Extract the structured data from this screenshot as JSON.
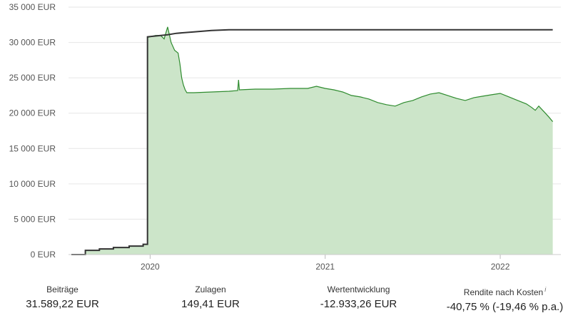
{
  "chart_data": {
    "type": "area",
    "ylim": [
      0,
      35000
    ],
    "y_ticks": [
      "0 EUR",
      "5 000 EUR",
      "10 000 EUR",
      "15 000 EUR",
      "20 000 EUR",
      "25 000 EUR",
      "30 000 EUR",
      "35 000 EUR"
    ],
    "y_tick_values": [
      0,
      5000,
      10000,
      15000,
      20000,
      25000,
      30000,
      35000
    ],
    "xlim": [
      2019.55,
      2022.33
    ],
    "x_ticks": [
      "2020",
      "2021",
      "2022"
    ],
    "x_tick_values": [
      2020,
      2021,
      2022
    ],
    "grid": true,
    "colors": {
      "beitraege": "#333333",
      "depotwert_line": "#2e8b2e",
      "depotwert_fill": "#cce5c9",
      "grid": "#e6e6e6"
    },
    "series": [
      {
        "key": "beitraege",
        "x": [
          2019.55,
          2019.63,
          2019.63,
          2019.71,
          2019.71,
          2019.79,
          2019.79,
          2019.88,
          2019.88,
          2019.96,
          2019.96,
          2019.985,
          2019.985,
          2020.1,
          2020.15,
          2020.25,
          2020.35,
          2020.45,
          2021.0,
          2021.5,
          2022.0,
          2022.3
        ],
        "y": [
          0,
          0,
          600,
          600,
          800,
          800,
          1000,
          1000,
          1200,
          1200,
          1450,
          1450,
          30800,
          31100,
          31300,
          31500,
          31700,
          31800,
          31800,
          31800,
          31800,
          31800
        ]
      },
      {
        "key": "depotwert",
        "x": [
          2019.55,
          2019.63,
          2019.63,
          2019.71,
          2019.71,
          2019.79,
          2019.79,
          2019.88,
          2019.88,
          2019.96,
          2019.96,
          2019.985,
          2019.985,
          2020.03,
          2020.06,
          2020.08,
          2020.1,
          2020.12,
          2020.14,
          2020.16,
          2020.17,
          2020.18,
          2020.19,
          2020.2,
          2020.21,
          2020.25,
          2020.35,
          2020.45,
          2020.5,
          2020.505,
          2020.51,
          2020.6,
          2020.7,
          2020.8,
          2020.9,
          2020.95,
          2021.0,
          2021.05,
          2021.1,
          2021.15,
          2021.2,
          2021.25,
          2021.3,
          2021.35,
          2021.4,
          2021.45,
          2021.5,
          2021.55,
          2021.6,
          2021.65,
          2021.7,
          2021.75,
          2021.8,
          2021.85,
          2021.9,
          2021.95,
          2022.0,
          2022.05,
          2022.1,
          2022.15,
          2022.18,
          2022.2,
          2022.22,
          2022.25,
          2022.28,
          2022.3
        ],
        "y": [
          0,
          0,
          600,
          600,
          800,
          800,
          1000,
          1000,
          1200,
          1200,
          1450,
          1450,
          30700,
          31000,
          31000,
          30500,
          32200,
          30000,
          28900,
          28500,
          27000,
          25000,
          24000,
          23300,
          22900,
          22900,
          23000,
          23100,
          23200,
          24700,
          23300,
          23400,
          23400,
          23500,
          23500,
          23800,
          23500,
          23300,
          23000,
          22500,
          22300,
          22000,
          21500,
          21200,
          21000,
          21500,
          21800,
          22300,
          22700,
          22900,
          22500,
          22100,
          21800,
          22200,
          22400,
          22600,
          22800,
          22300,
          21800,
          21300,
          20800,
          20400,
          21000,
          20200,
          19400,
          18800
        ]
      }
    ]
  },
  "summary": [
    {
      "label": "Beiträge",
      "value": "31.589,22 EUR"
    },
    {
      "label": "Zulagen",
      "value": "149,41 EUR"
    },
    {
      "label": "Wertentwicklung",
      "value": "-12.933,26 EUR"
    },
    {
      "label": "Rendite nach Kosten",
      "info_icon": "i",
      "value": "-40,75 % (-19,46 % p.a.)"
    }
  ]
}
